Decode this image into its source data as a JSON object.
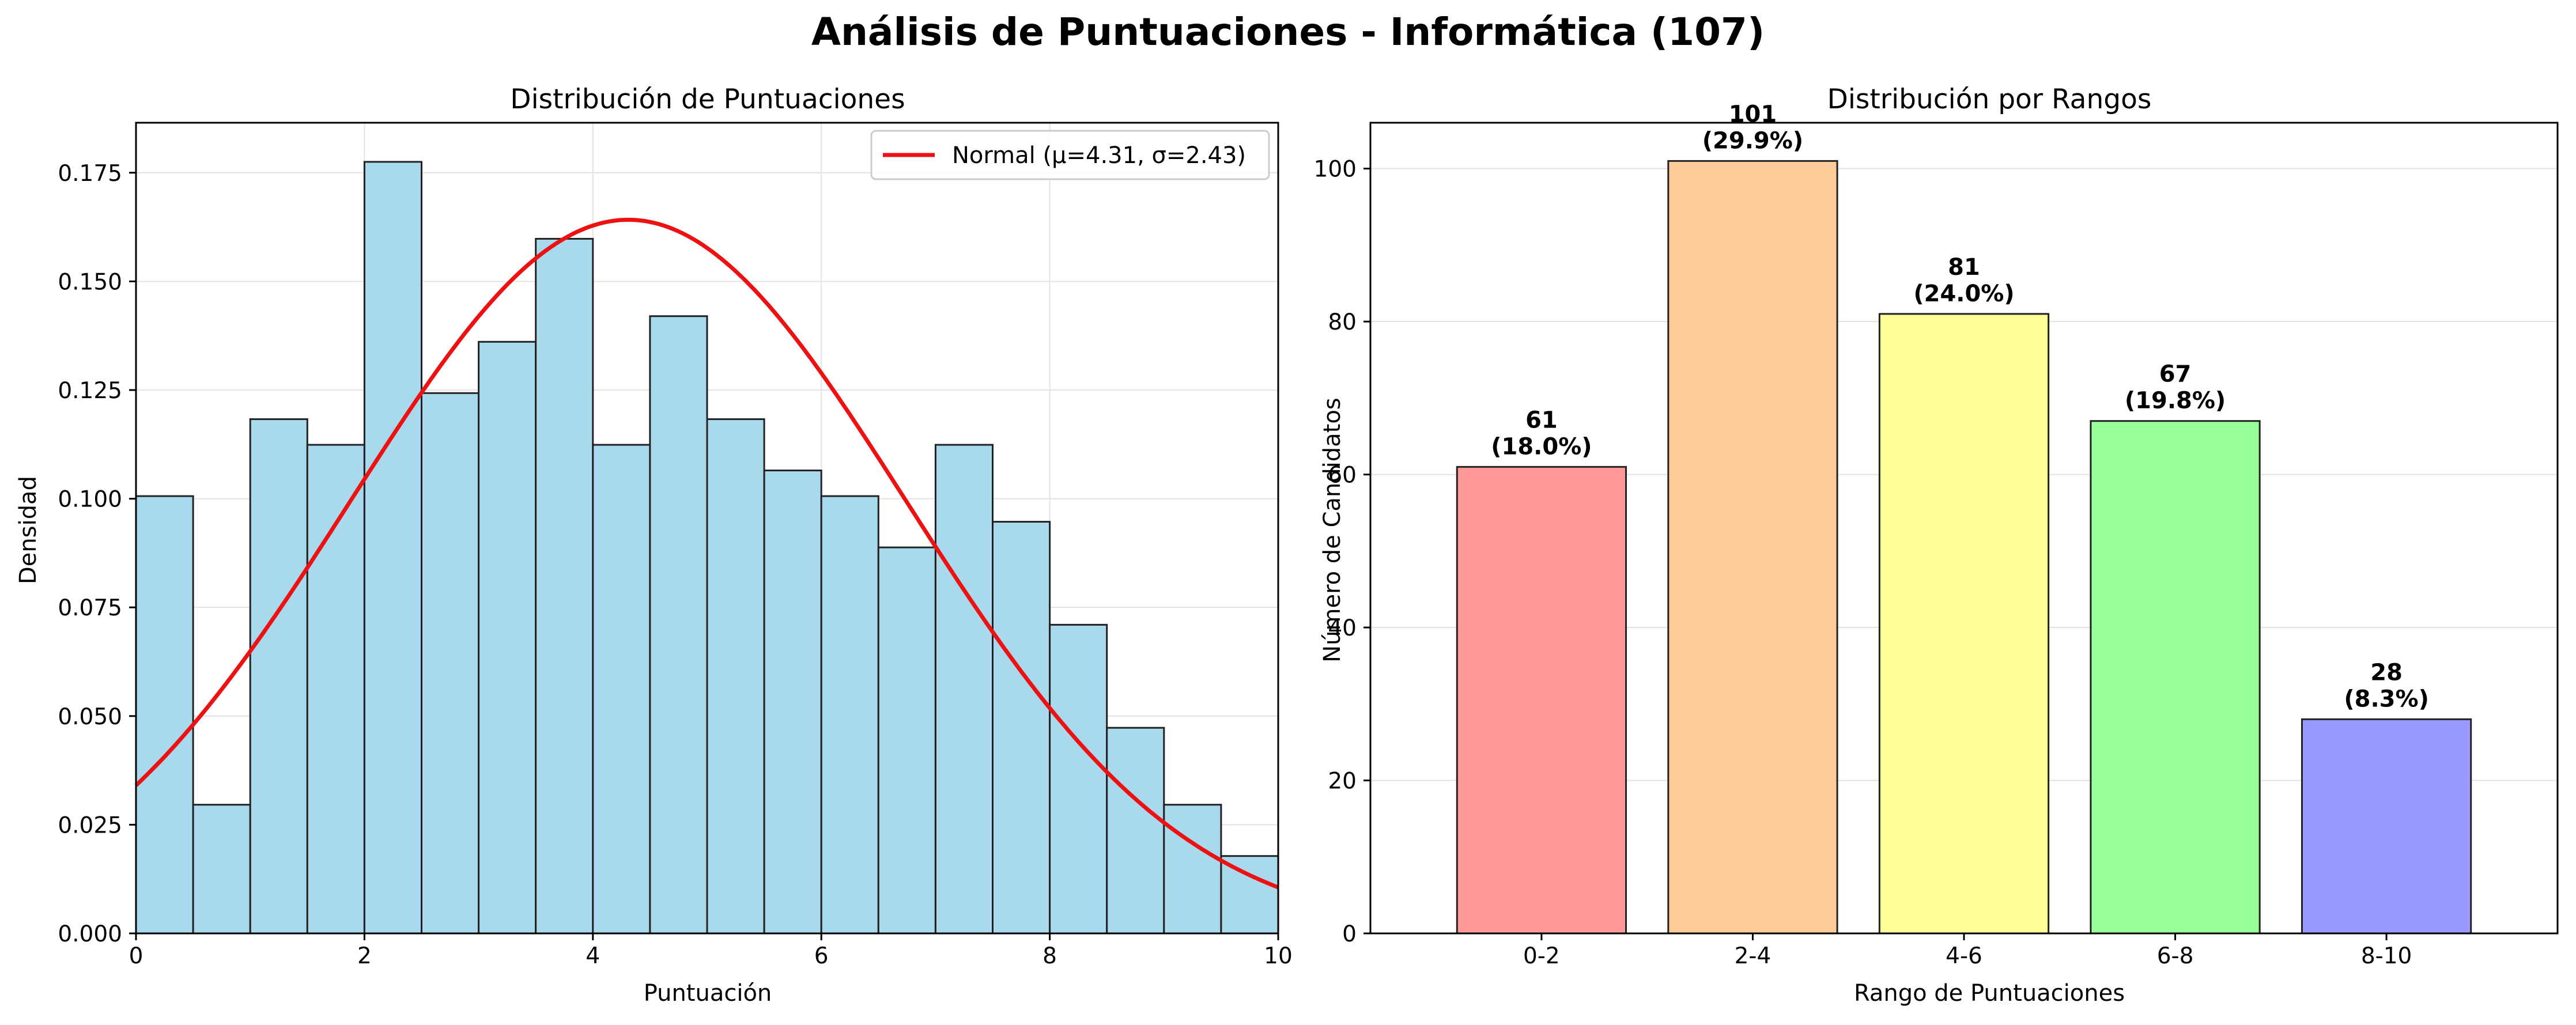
{
  "figure": {
    "title": "Análisis de Puntuaciones - Informática (107)"
  },
  "chart_data": [
    {
      "type": "bar",
      "subtype": "histogram",
      "title": "Distribución de Puntuaciones",
      "xlabel": "Puntuación",
      "ylabel": "Densidad",
      "xlim": [
        0,
        10
      ],
      "ylim": [
        0,
        0.1865
      ],
      "xticks": [
        0,
        2,
        4,
        6,
        8,
        10
      ],
      "xtick_labels": [
        "0",
        "2",
        "4",
        "6",
        "8",
        "10"
      ],
      "yticks": [
        0,
        0.025,
        0.05,
        0.075,
        0.1,
        0.125,
        0.15,
        0.175
      ],
      "ytick_labels": [
        "0.000",
        "0.025",
        "0.050",
        "0.075",
        "0.100",
        "0.125",
        "0.150",
        "0.175"
      ],
      "grid": true,
      "bin_edges": [
        0,
        0.5,
        1,
        1.5,
        2,
        2.5,
        3,
        3.5,
        4,
        4.5,
        5,
        5.5,
        6,
        6.5,
        7,
        7.5,
        8,
        8.5,
        9,
        9.5,
        10
      ],
      "densities": [
        0.1006,
        0.0296,
        0.1183,
        0.1124,
        0.1775,
        0.1243,
        0.1361,
        0.1598,
        0.1124,
        0.142,
        0.1183,
        0.1065,
        0.1006,
        0.0888,
        0.1124,
        0.0947,
        0.071,
        0.0473,
        0.0296,
        0.0178
      ],
      "bar_color": "#a9d9ed",
      "edge_color": "#222222",
      "fit_curve": {
        "name": "Normal (μ=4.31, σ=2.43)",
        "distribution": "normal",
        "mu": 4.31,
        "sigma": 2.43,
        "color": "#ee1111"
      },
      "legend_position": "upper right"
    },
    {
      "type": "bar",
      "title": "Distribución por Rangos",
      "xlabel": "Rango de Puntuaciones",
      "ylabel": "Número de Candidatos",
      "categories": [
        "0-2",
        "2-4",
        "4-6",
        "6-8",
        "8-10"
      ],
      "values": [
        61,
        101,
        81,
        67,
        28
      ],
      "bar_labels": [
        "61\n(18.0%)",
        "101\n(29.9%)",
        "81\n(24.0%)",
        "67\n(19.8%)",
        "28\n(8.3%)"
      ],
      "colors": [
        "#ff9999",
        "#ffcc99",
        "#ffff99",
        "#99ff99",
        "#9999ff"
      ],
      "edge_color": "#222222",
      "ylim": [
        0,
        106
      ],
      "yticks": [
        0,
        20,
        40,
        60,
        80,
        100
      ],
      "ytick_labels": [
        "0",
        "20",
        "40",
        "60",
        "80",
        "100"
      ],
      "grid": true
    }
  ]
}
